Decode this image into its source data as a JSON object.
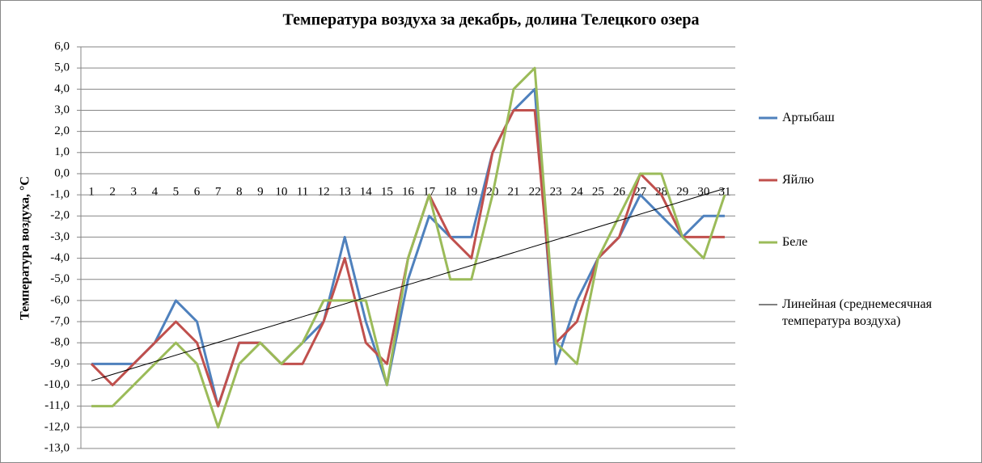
{
  "chart_data": {
    "type": "line",
    "title": "Температура  воздуха за декабрь, долина Телецкого озера",
    "y_label": "Температура воздуха, °С",
    "categories": [
      "1",
      "2",
      "3",
      "4",
      "5",
      "6",
      "7",
      "8",
      "9",
      "10",
      "11",
      "12",
      "13",
      "14",
      "15",
      "16",
      "17",
      "18",
      "19",
      "20",
      "21",
      "22",
      "23",
      "24",
      "25",
      "26",
      "27",
      "28",
      "29",
      "30",
      "31"
    ],
    "series": [
      {
        "name": "Артыбаш",
        "color": "#4f81bd",
        "values": [
          -9,
          -9,
          -9,
          -8,
          -6,
          -7,
          -11,
          -8,
          -8,
          -9,
          -8,
          -7,
          -3,
          -7,
          -10,
          -5,
          -2,
          -3,
          -3,
          1,
          3,
          4,
          -9,
          -6,
          -4,
          -3,
          -1,
          -2,
          -3,
          -2,
          -2
        ]
      },
      {
        "name": "Яйлю",
        "color": "#c0504d",
        "values": [
          -9,
          -10,
          -9,
          -8,
          -7,
          -8,
          -11,
          -8,
          -8,
          -9,
          -9,
          -7,
          -4,
          -8,
          -9,
          -4,
          -1,
          -3,
          -4,
          1,
          3,
          3,
          -8,
          -7,
          -4,
          -3,
          0,
          -1,
          -3,
          -3,
          -3
        ]
      },
      {
        "name": "Беле",
        "color": "#9bbb59",
        "values": [
          -11,
          -11,
          -10,
          -9,
          -8,
          -9,
          -12,
          -9,
          -8,
          -9,
          -8,
          -6,
          -6,
          -6,
          -10,
          -4,
          -1,
          -5,
          -5,
          -1,
          4,
          5,
          -8,
          -9,
          -4,
          -2,
          0,
          0,
          -3,
          -4,
          -1
        ]
      }
    ],
    "trend": {
      "name": "Линейная (среднемесячная температура воздуха)",
      "color": "#000000",
      "x": [
        1,
        31
      ],
      "values": [
        -9.8,
        -0.7
      ]
    },
    "ylim": [
      -13,
      6
    ],
    "yticks": [
      {
        "value": 6,
        "label": "6,0"
      },
      {
        "value": 5,
        "label": "5,0"
      },
      {
        "value": 4,
        "label": "4,0"
      },
      {
        "value": 3,
        "label": "3,0"
      },
      {
        "value": 2,
        "label": "2,0"
      },
      {
        "value": 1,
        "label": "1,0"
      },
      {
        "value": 0,
        "label": "0,0"
      },
      {
        "value": -1,
        "label": "-1,0"
      },
      {
        "value": -2,
        "label": "-2,0"
      },
      {
        "value": -3,
        "label": "-3,0"
      },
      {
        "value": -4,
        "label": "-4,0"
      },
      {
        "value": -5,
        "label": "-5,0"
      },
      {
        "value": -6,
        "label": "-6,0"
      },
      {
        "value": -7,
        "label": "-7,0"
      },
      {
        "value": -8,
        "label": "-8,0"
      },
      {
        "value": -9,
        "label": "-9,0"
      },
      {
        "value": -10,
        "label": "-10,0"
      },
      {
        "value": -11,
        "label": "-11,0"
      },
      {
        "value": -12,
        "label": "-12,0"
      },
      {
        "value": -13,
        "label": "-13,0"
      }
    ],
    "grid": true,
    "legend": "right"
  }
}
